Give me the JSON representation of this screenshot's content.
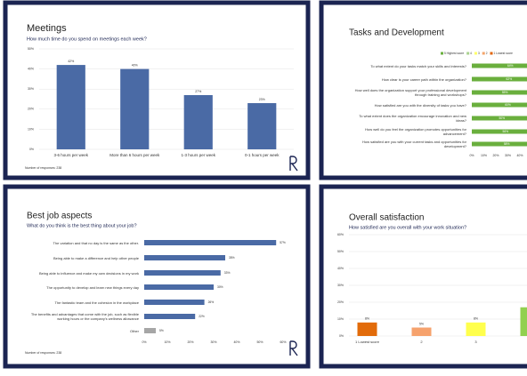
{
  "chart_data": [
    {
      "type": "bar",
      "title": "Meetings",
      "subtitle": "How much time do you spend on meetings each week?",
      "categories": [
        "3-6 hours per week",
        "More than 6 hours per week",
        "1-3 hours per week",
        "0-1 hours per week"
      ],
      "values": [
        42,
        40,
        27,
        23
      ],
      "value_labels": [
        "42%",
        "40%",
        "27%",
        "23%"
      ],
      "color": "#4a6aa5",
      "ylim": [
        0,
        50
      ],
      "yticks": [
        {
          "value": 0,
          "label": "0%"
        },
        {
          "value": 10,
          "label": "10%"
        },
        {
          "value": 20,
          "label": "20%"
        },
        {
          "value": 30,
          "label": "30%"
        },
        {
          "value": 40,
          "label": "40%"
        },
        {
          "value": 50,
          "label": "50%"
        }
      ],
      "grid": true,
      "note": "Number of responses: 238"
    },
    {
      "type": "stacked_barh",
      "title": "Tasks and Development",
      "categories": [
        "To what extent do your tasks match your skills and interests?",
        "How clear is your career path within the organization?",
        "How well does the organization support your professional development through training and workshops?",
        "How satisfied are you with the diversity of tasks you have?",
        "To what extent does the organization encourage innovation and new ideas?",
        "How well do you feel the organization promotes opportunities for advancement?",
        "How satisfied are you with your current tasks and opportunities for development?"
      ],
      "legend": [
        {
          "name": "5 Highest score",
          "color": "#6aaf3d"
        },
        {
          "name": "4",
          "color": "#a9d18e"
        },
        {
          "name": "3",
          "color": "#ffff66"
        },
        {
          "name": "2",
          "color": "#f4a46a"
        },
        {
          "name": "1 Lowest score",
          "color": "#e2640a"
        }
      ],
      "series": [
        {
          "name": "5 Highest score",
          "color": "#6aaf3d",
          "values": [
            64,
            62,
            55,
            60,
            50,
            56,
            58
          ],
          "value_labels": [
            "64%",
            "62%",
            "55%",
            "60%",
            "50%",
            "56%",
            "58%"
          ]
        }
      ],
      "xlim": [
        0,
        100
      ],
      "xticks": [
        {
          "value": 0,
          "label": "0%"
        },
        {
          "value": 10,
          "label": "10%"
        },
        {
          "value": 20,
          "label": "20%"
        },
        {
          "value": 30,
          "label": "30%"
        },
        {
          "value": 40,
          "label": "40%"
        }
      ]
    },
    {
      "type": "barh",
      "title": "Best job aspects",
      "subtitle": "What do you think is the best thing about your job?",
      "categories": [
        "The variation and that no day is the same as the other.",
        "Being able to make a difference and help other people",
        "Being able to influence and make my own decisions in my work",
        "The opportunity to develop and learn new things every day",
        "The fantastic team and the cohesion in the workplace",
        "The benefits and advantages that come with the job, such as flexible working hours or the company's wellness allowance",
        "Other"
      ],
      "values": [
        57,
        35,
        33,
        30,
        26,
        22,
        5
      ],
      "value_labels": [
        "57%",
        "35%",
        "33%",
        "30%",
        "26%",
        "22%",
        "5%"
      ],
      "colors": [
        "#4a6aa5",
        "#4a6aa5",
        "#4a6aa5",
        "#4a6aa5",
        "#4a6aa5",
        "#4a6aa5",
        "#a6a6a6"
      ],
      "xlim": [
        0,
        60
      ],
      "xticks": [
        {
          "value": 0,
          "label": "0%"
        },
        {
          "value": 10,
          "label": "10%"
        },
        {
          "value": 20,
          "label": "20%"
        },
        {
          "value": 30,
          "label": "30%"
        },
        {
          "value": 40,
          "label": "40%"
        },
        {
          "value": 50,
          "label": "50%"
        },
        {
          "value": 60,
          "label": "60%"
        }
      ],
      "note": "Number of responses: 238"
    },
    {
      "type": "bar",
      "title": "Overall satisfaction",
      "subtitle": "How satisfied are you overall with your work situation?",
      "categories": [
        "1 Lowest score",
        "2",
        "3",
        null
      ],
      "values": [
        8,
        5,
        8,
        17
      ],
      "value_labels": [
        "8%",
        "5%",
        "8%",
        null
      ],
      "colors": [
        "#e26b0a",
        "#f6a26d",
        "#ffff4d",
        "#92d050"
      ],
      "ylim": [
        0,
        60
      ],
      "yticks": [
        {
          "value": 0,
          "label": "0%"
        },
        {
          "value": 10,
          "label": "10%"
        },
        {
          "value": 20,
          "label": "20%"
        },
        {
          "value": 30,
          "label": "30%"
        },
        {
          "value": 40,
          "label": "40%"
        },
        {
          "value": 50,
          "label": "50%"
        },
        {
          "value": 60,
          "label": "60%"
        }
      ],
      "grid": true
    }
  ]
}
